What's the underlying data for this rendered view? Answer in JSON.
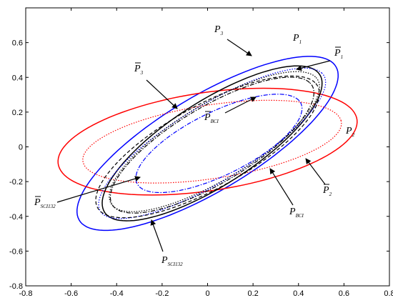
{
  "chart_data": {
    "type": "ellipse",
    "xlim": [
      -0.8,
      0.8
    ],
    "xticks": [
      -0.8,
      -0.6,
      -0.4,
      -0.2,
      0,
      0.2,
      0.4,
      0.6,
      0.8
    ],
    "ylim": [
      -0.8,
      0.8
    ],
    "yticks": [
      -0.8,
      -0.6,
      -0.4,
      -0.2,
      0,
      0.2,
      0.4,
      0.6
    ],
    "series": [
      {
        "color": "#0000ff",
        "dash": "solid",
        "center": [
          0.0,
          0.02
        ],
        "radii": [
          0.72,
          0.25
        ],
        "angle": 40
      },
      {
        "color": "#ff0000",
        "dash": "solid",
        "center": [
          0.0,
          0.03
        ],
        "radii": [
          0.67,
          0.28
        ],
        "angle": 12
      },
      {
        "color": "#ff0000",
        "dash": "dotted",
        "center": [
          0.02,
          0.03
        ],
        "radii": [
          0.58,
          0.21
        ],
        "angle": 12
      },
      {
        "color": "#000000",
        "dash": "solid",
        "center": [
          0.02,
          0.02
        ],
        "radii": [
          0.62,
          0.22
        ],
        "angle": 42
      },
      {
        "color": "#0000ff",
        "dash": "dotted",
        "center": [
          0.02,
          0.02
        ],
        "radii": [
          0.63,
          0.2
        ],
        "angle": 40
      },
      {
        "color": "#000000",
        "dash": "dotted",
        "center": [
          0.03,
          0.03
        ],
        "radii": [
          0.58,
          0.2
        ],
        "angle": 40
      },
      {
        "color": "#000000",
        "dash": "dashed",
        "center": [
          0.0,
          0.0
        ],
        "radii": [
          0.6,
          0.22
        ],
        "angle": 38
      },
      {
        "color": "#000000",
        "dash": "dashdot",
        "center": [
          0.02,
          0.01
        ],
        "radii": [
          0.56,
          0.2
        ],
        "angle": 40
      },
      {
        "color": "#0000ff",
        "dash": "dashdot",
        "center": [
          0.05,
          0.02
        ],
        "radii": [
          0.43,
          0.17
        ],
        "angle": 35
      }
    ],
    "annotations": [
      {
        "text": "P",
        "sub": "3",
        "bar": false
      },
      {
        "text": "P",
        "sub": "1",
        "bar": false
      },
      {
        "text": "P",
        "sub": "1",
        "bar": true
      },
      {
        "text": "P",
        "sub": "3",
        "bar": true
      },
      {
        "text": "P",
        "sub": "BCI",
        "bar": true
      },
      {
        "text": "P",
        "sub": "2",
        "bar": false
      },
      {
        "text": "P",
        "sub": "2",
        "bar": true
      },
      {
        "text": "P",
        "sub": "BCI",
        "bar": false
      },
      {
        "text": "P",
        "sub": "SCI132",
        "bar": true
      },
      {
        "text": "P",
        "sub": "SCI132",
        "bar": false
      }
    ]
  }
}
